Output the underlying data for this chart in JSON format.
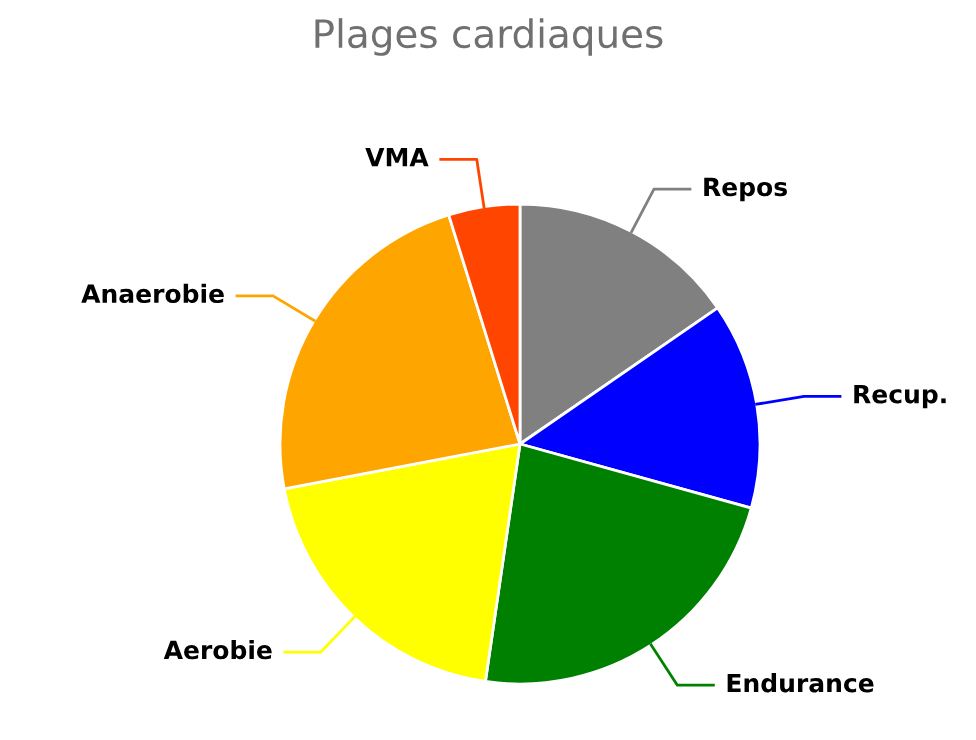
{
  "chart_data": {
    "type": "pie",
    "title": "Plages cardiaques",
    "categories": [
      "Repos",
      "Recup.",
      "Endurance",
      "Aerobie",
      "Anaerobie",
      "VMA"
    ],
    "values": [
      15.4,
      13.9,
      23.0,
      19.7,
      23.2,
      4.8
    ],
    "colors": [
      "#808080",
      "#0000ff",
      "#008000",
      "#ffff00",
      "#ffa500",
      "#ff4500"
    ]
  }
}
